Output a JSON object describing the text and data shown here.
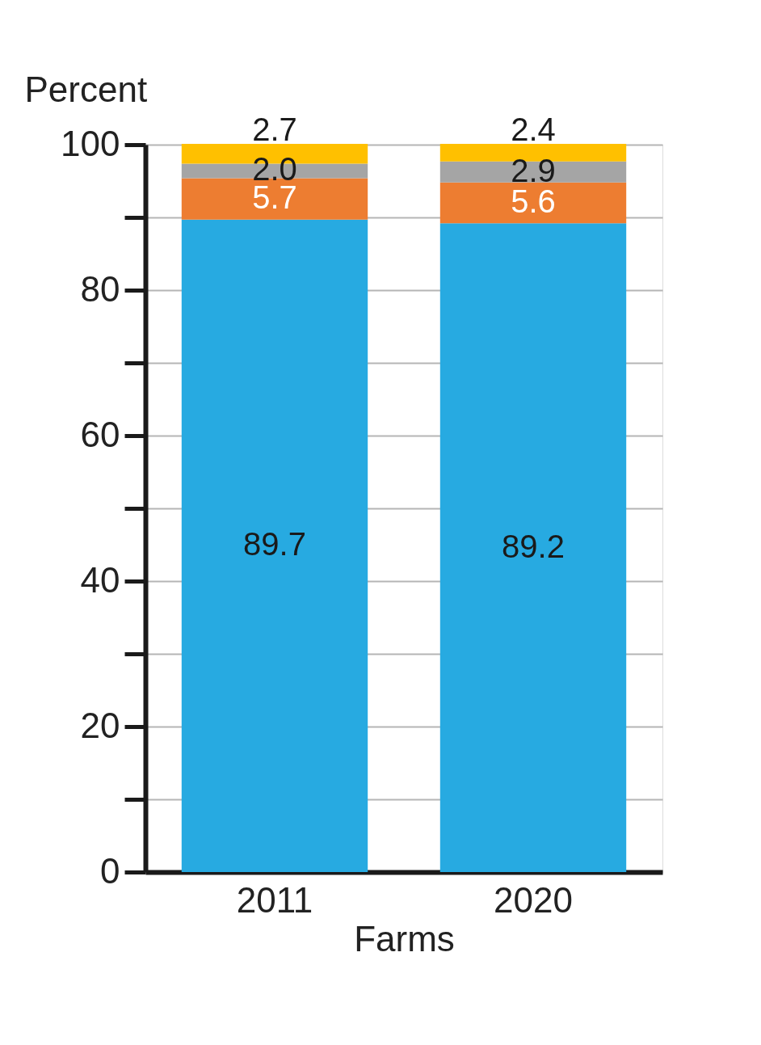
{
  "chart_data": {
    "type": "bar",
    "stacked": true,
    "ylabel": "Percent",
    "xlabel": "Farms",
    "categories": [
      "2011",
      "2020"
    ],
    "series": [
      {
        "color": "#27aae1",
        "values": [
          89.7,
          89.2
        ],
        "value_labels": [
          "89.7",
          "89.2"
        ]
      },
      {
        "color": "#ed7d31",
        "values": [
          5.7,
          5.6
        ],
        "value_labels": [
          "5.7",
          "5.6"
        ]
      },
      {
        "color": "#a5a5a5",
        "values": [
          2.0,
          2.9
        ],
        "value_labels": [
          "2.0",
          "2.9"
        ]
      },
      {
        "color": "#ffc000",
        "values": [
          2.7,
          2.4
        ],
        "value_labels": [
          "2.7",
          "2.4"
        ]
      }
    ],
    "ylim": [
      0,
      100
    ],
    "yticks": [
      0,
      {
        "value": 10,
        "label": null
      },
      20,
      {
        "value": 30,
        "label": null
      },
      40,
      {
        "value": 50,
        "label": null
      },
      60,
      {
        "value": 70,
        "label": null
      },
      80,
      {
        "value": 90,
        "label": null
      },
      100
    ],
    "grid": "y"
  }
}
